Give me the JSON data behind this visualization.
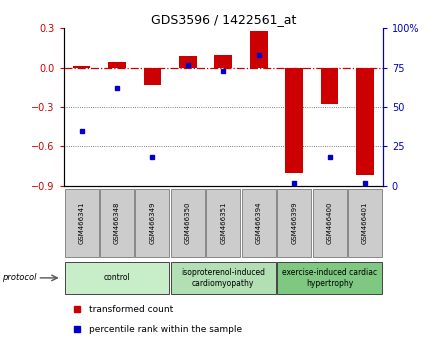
{
  "title": "GDS3596 / 1422561_at",
  "samples": [
    "GSM466341",
    "GSM466348",
    "GSM466349",
    "GSM466350",
    "GSM466351",
    "GSM466394",
    "GSM466399",
    "GSM466400",
    "GSM466401"
  ],
  "red_bars": [
    0.01,
    0.04,
    -0.13,
    0.09,
    0.1,
    0.28,
    -0.8,
    -0.28,
    -0.82
  ],
  "blue_dots": [
    35,
    62,
    18,
    77,
    73,
    83,
    2,
    18,
    2
  ],
  "groups": [
    {
      "label": "control",
      "start": 0,
      "end": 3,
      "color": "#c8edc9"
    },
    {
      "label": "isoproterenol-induced\ncardiomyopathy",
      "start": 3,
      "end": 6,
      "color": "#b2e0b4"
    },
    {
      "label": "exercise-induced cardiac\nhypertrophy",
      "start": 6,
      "end": 9,
      "color": "#7ec882"
    }
  ],
  "ylim_left": [
    -0.9,
    0.3
  ],
  "ylim_right": [
    0,
    100
  ],
  "yticks_left": [
    0.3,
    0.0,
    -0.3,
    -0.6,
    -0.9
  ],
  "yticks_right": [
    100,
    75,
    50,
    25,
    0
  ],
  "red_color": "#cc0000",
  "blue_color": "#0000cc",
  "dotted_line_color": "#555555",
  "bar_width": 0.5,
  "legend_red": "transformed count",
  "legend_blue": "percentile rank within the sample",
  "sample_box_color": "#cccccc",
  "sample_box_edge": "#888888"
}
